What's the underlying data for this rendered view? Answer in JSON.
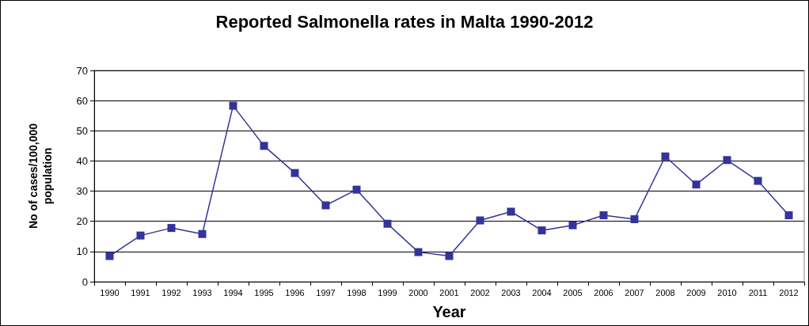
{
  "chart_data": {
    "type": "line",
    "title": "Reported Salmonella rates in Malta 1990-2012",
    "xlabel": "Year",
    "ylabel": "No of cases/100,000\npopulation",
    "categories": [
      "1990",
      "1991",
      "1992",
      "1993",
      "1994",
      "1995",
      "1996",
      "1997",
      "1998",
      "1999",
      "2000",
      "2001",
      "2002",
      "2003",
      "2004",
      "2005",
      "2006",
      "2007",
      "2008",
      "2009",
      "2010",
      "2011",
      "2012"
    ],
    "series": [
      {
        "color": "#333399",
        "values": [
          8.5,
          15.3,
          17.8,
          15.8,
          58.3,
          45,
          36,
          25.3,
          30.5,
          19.2,
          9.8,
          8.5,
          20.3,
          23.2,
          17,
          18.7,
          22,
          20.7,
          41.5,
          32.2,
          40.3,
          33.4,
          22
        ]
      }
    ],
    "ylim": [
      0,
      70
    ],
    "yticks": [
      0,
      10,
      20,
      30,
      40,
      50,
      60,
      70
    ],
    "grid": "y",
    "marker": "square",
    "line_style": "solid"
  }
}
